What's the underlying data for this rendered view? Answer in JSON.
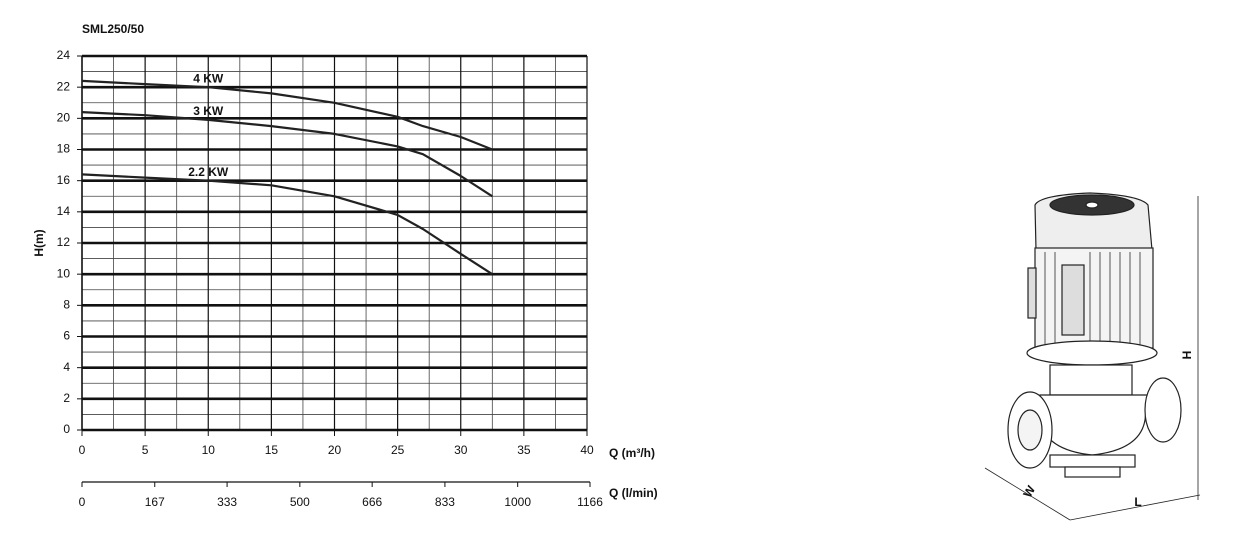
{
  "chart_data": {
    "type": "line",
    "title": "SML250/50",
    "y_label": "H(m)",
    "x_label": "Q (m³/h)",
    "x2_label": "Q (l/min)",
    "x": [
      0,
      5,
      10,
      15,
      20,
      25,
      27,
      30,
      32.5
    ],
    "series": [
      {
        "name": "4 KW",
        "color": "#222222",
        "values": [
          22.4,
          22.2,
          22,
          21.6,
          21,
          20.1,
          19.5,
          18.8,
          18
        ]
      },
      {
        "name": "3 KW",
        "color": "#222222",
        "values": [
          20.4,
          20.2,
          19.9,
          19.5,
          19,
          18.2,
          17.7,
          16.3,
          15
        ]
      },
      {
        "name": "2.2 KW",
        "color": "#222222",
        "values": [
          16.4,
          16.2,
          16,
          15.7,
          15,
          13.8,
          12.9,
          11.3,
          10
        ]
      }
    ],
    "xlim": [
      0,
      40
    ],
    "xticks": [
      0,
      5,
      10,
      15,
      20,
      25,
      30,
      35,
      40
    ],
    "ylim": [
      0,
      24
    ],
    "yticks": [
      0,
      2,
      4,
      6,
      8,
      10,
      12,
      14,
      16,
      18,
      20,
      22,
      24
    ],
    "x2lim": [
      0,
      1166
    ],
    "x2ticks": [
      0,
      167,
      333,
      500,
      666,
      833,
      1000,
      1166
    ],
    "grid": true,
    "minor_grid": true
  },
  "drawing_labels": {
    "height": "H",
    "width": "W",
    "length": "L"
  }
}
